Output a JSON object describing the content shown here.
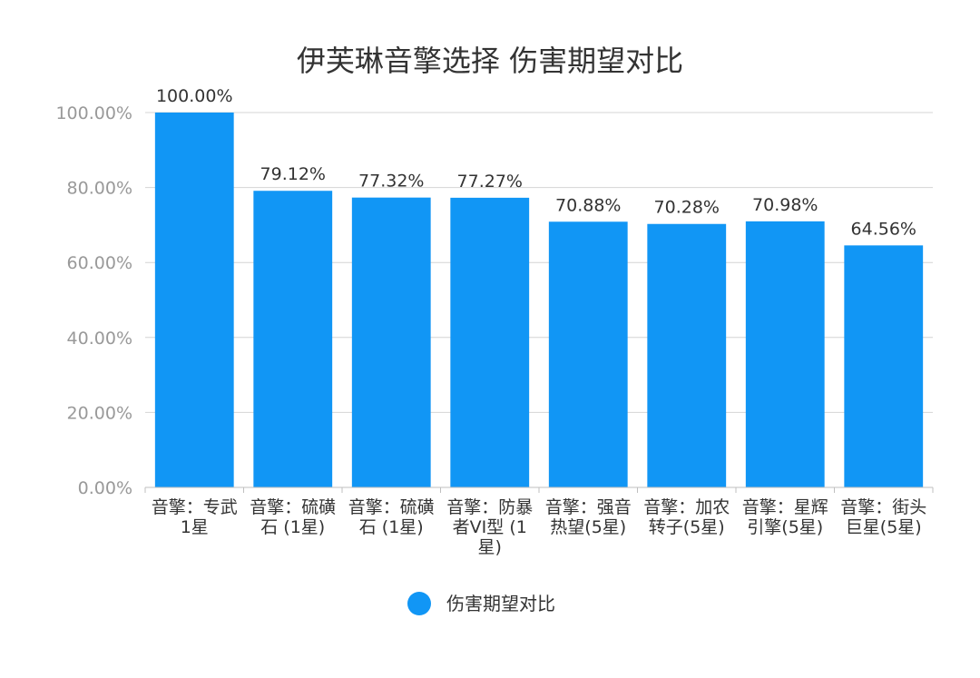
{
  "chart_data": {
    "type": "bar",
    "title": "伊芙琳音擎选择 伤害期望对比",
    "xlabel": "",
    "ylabel": "",
    "ylim": [
      0,
      100
    ],
    "yticks": [
      "0.00%",
      "20.00%",
      "40.00%",
      "60.00%",
      "80.00%",
      "100.00%"
    ],
    "ytick_values": [
      0,
      20,
      40,
      60,
      80,
      100
    ],
    "grid": true,
    "legend_position": "bottom",
    "bar_color": "#1196f5",
    "categories": [
      [
        "音擎：专武",
        "1星"
      ],
      [
        "音擎：硫磺",
        "石 (1星)"
      ],
      [
        "音擎：硫磺",
        "石 (1星)"
      ],
      [
        "音擎：防暴",
        "者VI型 (1",
        "星)"
      ],
      [
        "音擎：强音",
        "热望(5星)"
      ],
      [
        "音擎：加农",
        "转子(5星)"
      ],
      [
        "音擎：星辉",
        "引擎(5星)"
      ],
      [
        "音擎：街头",
        "巨星(5星)"
      ]
    ],
    "series": [
      {
        "name": "伤害期望对比",
        "values": [
          100.0,
          79.12,
          77.32,
          77.27,
          70.88,
          70.28,
          70.98,
          64.56
        ],
        "labels": [
          "100.00%",
          "79.12%",
          "77.32%",
          "77.27%",
          "70.88%",
          "70.28%",
          "70.98%",
          "64.56%"
        ]
      }
    ]
  }
}
